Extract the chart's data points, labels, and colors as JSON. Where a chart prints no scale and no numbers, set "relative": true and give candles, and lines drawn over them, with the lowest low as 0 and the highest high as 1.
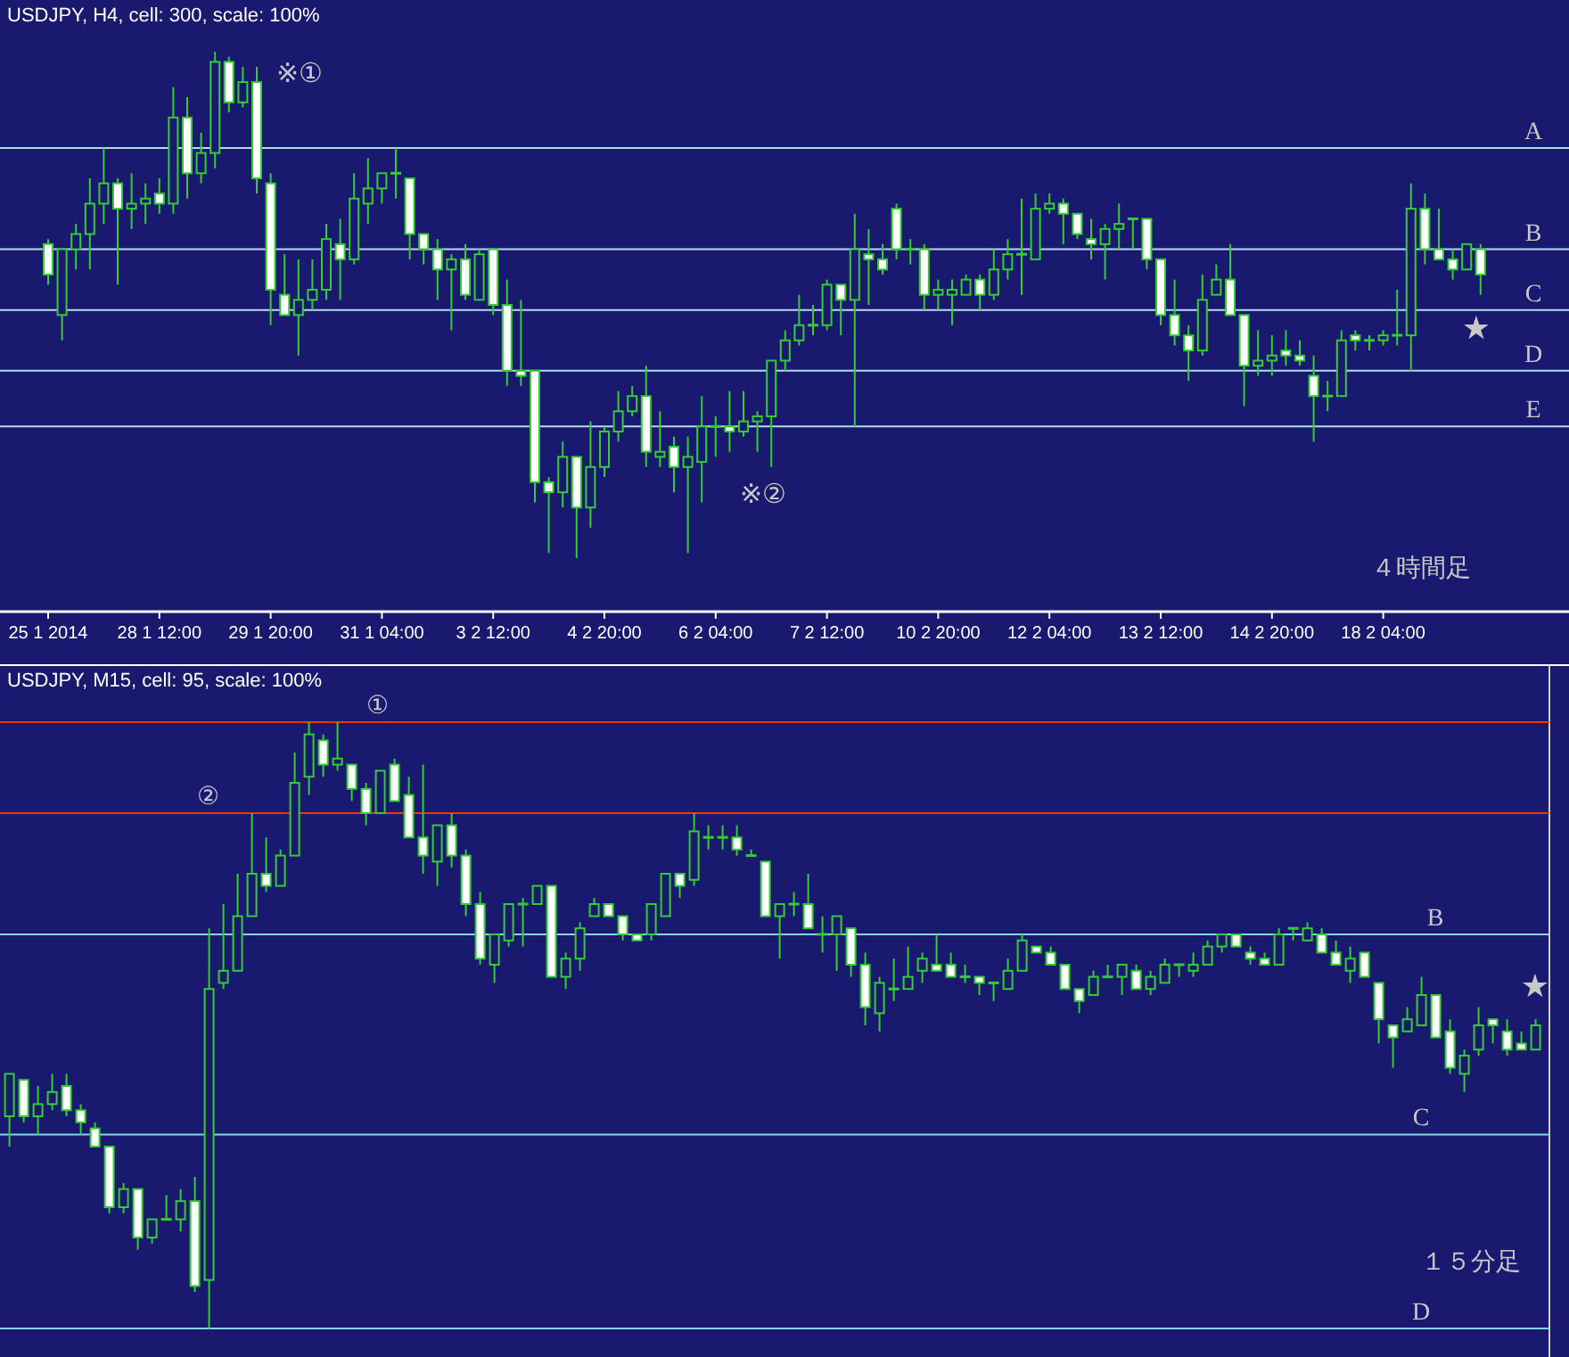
{
  "chart_data": [
    {
      "type": "candlestick",
      "title": "USDJPY, H4, cell: 300, scale: 100%",
      "relative": true,
      "categories": [
        "25 1 2014",
        null,
        null,
        null,
        null,
        null,
        null,
        null,
        "28 1 12:00",
        null,
        null,
        null,
        null,
        null,
        null,
        null,
        "29 1 20:00",
        null,
        null,
        null,
        null,
        null,
        null,
        null,
        "31 1 04:00",
        null,
        null,
        null,
        null,
        null,
        null,
        null,
        "3 2 12:00",
        null,
        null,
        null,
        null,
        null,
        null,
        null,
        "4 2 20:00",
        null,
        null,
        null,
        null,
        null,
        null,
        null,
        "6 2 04:00",
        null,
        null,
        null,
        null,
        null,
        null,
        null,
        "7 2 12:00",
        null,
        null,
        null,
        null,
        null,
        null,
        null,
        "10 2 20:00",
        null,
        null,
        null,
        null,
        null,
        null,
        null,
        "12 2 04:00",
        null,
        null,
        null,
        null,
        null,
        null,
        null,
        "13 2 12:00",
        null,
        null,
        null,
        null,
        null,
        null,
        null,
        "14 2 20:00",
        null,
        null,
        null,
        null,
        null,
        null,
        null,
        "18 2 04:00",
        null,
        null,
        null,
        null,
        null,
        null,
        null
      ],
      "ohlc": [
        [
          0.62,
          0.63,
          0.54,
          0.56
        ],
        [
          0.48,
          0.61,
          0.43,
          0.61
        ],
        [
          0.61,
          0.66,
          0.57,
          0.64
        ],
        [
          0.64,
          0.75,
          0.57,
          0.7
        ],
        [
          0.7,
          0.81,
          0.66,
          0.74
        ],
        [
          0.74,
          0.75,
          0.54,
          0.69
        ],
        [
          0.69,
          0.76,
          0.65,
          0.7
        ],
        [
          0.7,
          0.74,
          0.66,
          0.71
        ],
        [
          0.72,
          0.75,
          0.68,
          0.7
        ],
        [
          0.7,
          0.93,
          0.68,
          0.87
        ],
        [
          0.87,
          0.91,
          0.71,
          0.76
        ],
        [
          0.76,
          0.84,
          0.74,
          0.8
        ],
        [
          0.8,
          1,
          0.77,
          0.98
        ],
        [
          0.98,
          0.99,
          0.88,
          0.9
        ],
        [
          0.9,
          0.97,
          0.89,
          0.94
        ],
        [
          0.94,
          0.97,
          0.72,
          0.75
        ],
        [
          0.74,
          0.76,
          0.46,
          0.53
        ],
        [
          0.52,
          0.6,
          0.48,
          0.48
        ],
        [
          0.48,
          0.59,
          0.4,
          0.51
        ],
        [
          0.51,
          0.59,
          0.49,
          0.53
        ],
        [
          0.53,
          0.66,
          0.51,
          0.63
        ],
        [
          0.62,
          0.67,
          0.51,
          0.59
        ],
        [
          0.59,
          0.76,
          0.58,
          0.71
        ],
        [
          0.7,
          0.79,
          0.66,
          0.73
        ],
        [
          0.73,
          0.76,
          0.7,
          0.76
        ],
        [
          0.76,
          0.81,
          0.71,
          0.76
        ],
        [
          0.75,
          0.75,
          0.59,
          0.64
        ],
        [
          0.64,
          0.64,
          0.58,
          0.61
        ],
        [
          0.61,
          0.63,
          0.51,
          0.57
        ],
        [
          0.57,
          0.6,
          0.45,
          0.59
        ],
        [
          0.59,
          0.62,
          0.51,
          0.52
        ],
        [
          0.51,
          0.61,
          0.51,
          0.6
        ],
        [
          0.61,
          0.61,
          0.48,
          0.5
        ],
        [
          0.5,
          0.55,
          0.34,
          0.37
        ],
        [
          0.37,
          0.51,
          0.34,
          0.36
        ],
        [
          0.37,
          0.37,
          0.11,
          0.15
        ],
        [
          0.15,
          0.16,
          0.01,
          0.13
        ],
        [
          0.13,
          0.23,
          0.1,
          0.2
        ],
        [
          0.2,
          0.2,
          0,
          0.1
        ],
        [
          0.1,
          0.27,
          0.06,
          0.18
        ],
        [
          0.18,
          0.26,
          0.16,
          0.25
        ],
        [
          0.25,
          0.33,
          0.23,
          0.29
        ],
        [
          0.29,
          0.34,
          0.28,
          0.32
        ],
        [
          0.32,
          0.38,
          0.18,
          0.21
        ],
        [
          0.2,
          0.29,
          0.18,
          0.21
        ],
        [
          0.22,
          0.24,
          0.13,
          0.18
        ],
        [
          0.18,
          0.24,
          0.01,
          0.2
        ],
        [
          0.19,
          0.32,
          0.11,
          0.26
        ],
        [
          0.26,
          0.28,
          0.2,
          0.26
        ],
        [
          0.26,
          0.33,
          0.21,
          0.25
        ],
        [
          0.25,
          0.33,
          0.24,
          0.27
        ],
        [
          0.27,
          0.29,
          0.21,
          0.28
        ],
        [
          0.28,
          0.39,
          0.18,
          0.39
        ],
        [
          0.39,
          0.45,
          0.37,
          0.43
        ],
        [
          0.43,
          0.52,
          0.42,
          0.46
        ],
        [
          0.46,
          0.5,
          0.44,
          0.46
        ],
        [
          0.46,
          0.55,
          0.45,
          0.54
        ],
        [
          0.54,
          0.54,
          0.44,
          0.51
        ],
        [
          0.51,
          0.68,
          0.26,
          0.61
        ],
        [
          0.6,
          0.65,
          0.5,
          0.59
        ],
        [
          0.59,
          0.62,
          0.56,
          0.57
        ],
        [
          0.69,
          0.7,
          0.59,
          0.61
        ],
        [
          0.61,
          0.63,
          0.58,
          0.61
        ],
        [
          0.61,
          0.62,
          0.49,
          0.52
        ],
        [
          0.52,
          0.55,
          0.49,
          0.53
        ],
        [
          0.52,
          0.55,
          0.46,
          0.53
        ],
        [
          0.52,
          0.56,
          0.52,
          0.55
        ],
        [
          0.55,
          0.56,
          0.49,
          0.52
        ],
        [
          0.52,
          0.61,
          0.51,
          0.57
        ],
        [
          0.57,
          0.63,
          0.55,
          0.6
        ],
        [
          0.6,
          0.71,
          0.52,
          0.6
        ],
        [
          0.59,
          0.72,
          0.59,
          0.69
        ],
        [
          0.69,
          0.72,
          0.68,
          0.7
        ],
        [
          0.7,
          0.71,
          0.62,
          0.68
        ],
        [
          0.68,
          0.68,
          0.63,
          0.64
        ],
        [
          0.63,
          0.67,
          0.59,
          0.62
        ],
        [
          0.62,
          0.66,
          0.55,
          0.65
        ],
        [
          0.65,
          0.7,
          0.61,
          0.66
        ],
        [
          0.67,
          0.67,
          0.61,
          0.67
        ],
        [
          0.67,
          0.67,
          0.57,
          0.59
        ],
        [
          0.59,
          0.59,
          0.46,
          0.48
        ],
        [
          0.48,
          0.55,
          0.42,
          0.44
        ],
        [
          0.44,
          0.46,
          0.35,
          0.41
        ],
        [
          0.41,
          0.56,
          0.4,
          0.51
        ],
        [
          0.52,
          0.58,
          0.52,
          0.55
        ],
        [
          0.55,
          0.62,
          0.48,
          0.48
        ],
        [
          0.48,
          0.48,
          0.3,
          0.38
        ],
        [
          0.38,
          0.45,
          0.36,
          0.39
        ],
        [
          0.39,
          0.44,
          0.36,
          0.4
        ],
        [
          0.41,
          0.45,
          0.38,
          0.4
        ],
        [
          0.4,
          0.43,
          0.38,
          0.39
        ],
        [
          0.36,
          0.4,
          0.23,
          0.32
        ],
        [
          0.32,
          0.35,
          0.29,
          0.32
        ],
        [
          0.32,
          0.45,
          0.32,
          0.43
        ],
        [
          0.44,
          0.45,
          0.41,
          0.43
        ],
        [
          0.43,
          0.44,
          0.41,
          0.43
        ],
        [
          0.43,
          0.45,
          0.42,
          0.44
        ],
        [
          0.44,
          0.53,
          0.42,
          0.44
        ],
        [
          0.44,
          0.74,
          0.37,
          0.69
        ],
        [
          0.69,
          0.72,
          0.58,
          0.61
        ],
        [
          0.61,
          0.69,
          0.59,
          0.59
        ],
        [
          0.59,
          0.61,
          0.55,
          0.57
        ],
        [
          0.57,
          0.62,
          0.57,
          0.62
        ],
        [
          0.61,
          0.62,
          0.52,
          0.56
        ]
      ],
      "ref_lines": [
        {
          "axis": "y",
          "value": 0.81,
          "label": "A",
          "color": "#b0dcec"
        },
        {
          "axis": "y",
          "value": 0.61,
          "label": "B",
          "color": "#b0dcec"
        },
        {
          "axis": "y",
          "value": 0.49,
          "label": "C",
          "color": "#b0dcec"
        },
        {
          "axis": "y",
          "value": 0.37,
          "label": "D",
          "color": "#b0dcec"
        },
        {
          "axis": "y",
          "value": 0.26,
          "label": "E",
          "color": "#b0dcec"
        }
      ],
      "annotations": [
        "※①",
        "※②",
        "★",
        "４時間足"
      ]
    },
    {
      "type": "candlestick",
      "title": "USDJPY, M15, cell: 95, scale: 100%",
      "relative": true,
      "categories": [
        null,
        null,
        null,
        null,
        null,
        null,
        null,
        null,
        null,
        null,
        null,
        null,
        null,
        null,
        null,
        null,
        null,
        null,
        null,
        null,
        null,
        null,
        null,
        null,
        null,
        null,
        null,
        null,
        null,
        null,
        null,
        null,
        null,
        null,
        null,
        null,
        null,
        null,
        null,
        null,
        null,
        null,
        null,
        null,
        null,
        null,
        null,
        null,
        null,
        null,
        null,
        null,
        null,
        null,
        null,
        null,
        null,
        null,
        null,
        null,
        null,
        null,
        null,
        null,
        null,
        null,
        null,
        null,
        null,
        null,
        null,
        null,
        null,
        null,
        null,
        null,
        null,
        null,
        null,
        null,
        null,
        null,
        null,
        null,
        null,
        null,
        null,
        null,
        null,
        null,
        null,
        null,
        null,
        null,
        null,
        null,
        null,
        null,
        null,
        null,
        null,
        null,
        null,
        null,
        null,
        null,
        null,
        null
      ],
      "ohlc": [
        [
          0.35,
          0.42,
          0.3,
          0.42
        ],
        [
          0.41,
          0.41,
          0.34,
          0.35
        ],
        [
          0.35,
          0.4,
          0.32,
          0.37
        ],
        [
          0.37,
          0.42,
          0.36,
          0.39
        ],
        [
          0.4,
          0.42,
          0.35,
          0.36
        ],
        [
          0.36,
          0.37,
          0.32,
          0.34
        ],
        [
          0.33,
          0.34,
          0.3,
          0.3
        ],
        [
          0.3,
          0.3,
          0.19,
          0.2
        ],
        [
          0.2,
          0.24,
          0.19,
          0.23
        ],
        [
          0.23,
          0.23,
          0.13,
          0.15
        ],
        [
          0.15,
          0.18,
          0.14,
          0.18
        ],
        [
          0.18,
          0.22,
          0.18,
          0.18
        ],
        [
          0.18,
          0.23,
          0.16,
          0.21
        ],
        [
          0.21,
          0.25,
          0.06,
          0.07
        ],
        [
          0.08,
          0.66,
          0,
          0.56
        ],
        [
          0.57,
          0.7,
          0.56,
          0.59
        ],
        [
          0.59,
          0.75,
          0.59,
          0.68
        ],
        [
          0.68,
          0.85,
          0.68,
          0.75
        ],
        [
          0.75,
          0.81,
          0.72,
          0.73
        ],
        [
          0.73,
          0.79,
          0.73,
          0.78
        ],
        [
          0.78,
          0.95,
          0.78,
          0.9
        ],
        [
          0.91,
          1,
          0.88,
          0.98
        ],
        [
          0.97,
          0.98,
          0.91,
          0.93
        ],
        [
          0.93,
          1,
          0.92,
          0.94
        ],
        [
          0.93,
          0.93,
          0.87,
          0.89
        ],
        [
          0.89,
          0.9,
          0.83,
          0.85
        ],
        [
          0.85,
          0.92,
          0.85,
          0.92
        ],
        [
          0.93,
          0.94,
          0.87,
          0.87
        ],
        [
          0.88,
          0.91,
          0.81,
          0.81
        ],
        [
          0.81,
          0.93,
          0.75,
          0.78
        ],
        [
          0.77,
          0.83,
          0.73,
          0.83
        ],
        [
          0.83,
          0.85,
          0.76,
          0.78
        ],
        [
          0.78,
          0.79,
          0.68,
          0.7
        ],
        [
          0.7,
          0.72,
          0.6,
          0.61
        ],
        [
          0.6,
          0.65,
          0.57,
          0.65
        ],
        [
          0.64,
          0.7,
          0.63,
          0.7
        ],
        [
          0.7,
          0.71,
          0.63,
          0.7
        ],
        [
          0.7,
          0.73,
          0.7,
          0.73
        ],
        [
          0.73,
          0.73,
          0.58,
          0.58
        ],
        [
          0.58,
          0.62,
          0.56,
          0.61
        ],
        [
          0.61,
          0.67,
          0.59,
          0.66
        ],
        [
          0.68,
          0.71,
          0.68,
          0.7
        ],
        [
          0.7,
          0.7,
          0.68,
          0.68
        ],
        [
          0.68,
          0.68,
          0.64,
          0.65
        ],
        [
          0.65,
          0.65,
          0.64,
          0.64
        ],
        [
          0.65,
          0.7,
          0.64,
          0.7
        ],
        [
          0.68,
          0.75,
          0.68,
          0.75
        ],
        [
          0.75,
          0.75,
          0.71,
          0.73
        ],
        [
          0.74,
          0.85,
          0.73,
          0.82
        ],
        [
          0.81,
          0.83,
          0.79,
          0.81
        ],
        [
          0.81,
          0.83,
          0.79,
          0.81
        ],
        [
          0.81,
          0.83,
          0.78,
          0.79
        ],
        [
          0.78,
          0.79,
          0.78,
          0.78
        ],
        [
          0.77,
          0.77,
          0.68,
          0.68
        ],
        [
          0.68,
          0.7,
          0.61,
          0.7
        ],
        [
          0.7,
          0.72,
          0.68,
          0.7
        ],
        [
          0.7,
          0.75,
          0.66,
          0.66
        ],
        [
          0.65,
          0.68,
          0.62,
          0.65
        ],
        [
          0.65,
          0.68,
          0.59,
          0.68
        ],
        [
          0.66,
          0.66,
          0.58,
          0.6
        ],
        [
          0.6,
          0.62,
          0.5,
          0.53
        ],
        [
          0.52,
          0.58,
          0.49,
          0.57
        ],
        [
          0.56,
          0.61,
          0.54,
          0.56
        ],
        [
          0.56,
          0.63,
          0.56,
          0.58
        ],
        [
          0.59,
          0.62,
          0.57,
          0.61
        ],
        [
          0.6,
          0.65,
          0.59,
          0.59
        ],
        [
          0.6,
          0.62,
          0.58,
          0.58
        ],
        [
          0.58,
          0.6,
          0.57,
          0.58
        ],
        [
          0.58,
          0.58,
          0.55,
          0.57
        ],
        [
          0.57,
          0.57,
          0.54,
          0.57
        ],
        [
          0.56,
          0.61,
          0.56,
          0.59
        ],
        [
          0.59,
          0.65,
          0.59,
          0.64
        ],
        [
          0.63,
          0.63,
          0.62,
          0.62
        ],
        [
          0.62,
          0.63,
          0.6,
          0.6
        ],
        [
          0.6,
          0.6,
          0.56,
          0.56
        ],
        [
          0.56,
          0.56,
          0.52,
          0.54
        ],
        [
          0.55,
          0.59,
          0.55,
          0.58
        ],
        [
          0.58,
          0.6,
          0.58,
          0.58
        ],
        [
          0.58,
          0.6,
          0.55,
          0.6
        ],
        [
          0.59,
          0.6,
          0.56,
          0.56
        ],
        [
          0.56,
          0.59,
          0.55,
          0.58
        ],
        [
          0.57,
          0.61,
          0.57,
          0.6
        ],
        [
          0.6,
          0.6,
          0.58,
          0.6
        ],
        [
          0.59,
          0.62,
          0.58,
          0.6
        ],
        [
          0.6,
          0.64,
          0.6,
          0.63
        ],
        [
          0.63,
          0.65,
          0.62,
          0.65
        ],
        [
          0.65,
          0.65,
          0.63,
          0.63
        ],
        [
          0.62,
          0.63,
          0.6,
          0.61
        ],
        [
          0.61,
          0.62,
          0.6,
          0.6
        ],
        [
          0.6,
          0.66,
          0.6,
          0.65
        ],
        [
          0.66,
          0.66,
          0.64,
          0.66
        ],
        [
          0.64,
          0.67,
          0.64,
          0.66
        ],
        [
          0.65,
          0.66,
          0.62,
          0.62
        ],
        [
          0.62,
          0.64,
          0.6,
          0.6
        ],
        [
          0.59,
          0.63,
          0.57,
          0.61
        ],
        [
          0.62,
          0.62,
          0.58,
          0.58
        ],
        [
          0.57,
          0.57,
          0.47,
          0.51
        ],
        [
          0.5,
          0.5,
          0.43,
          0.48
        ],
        [
          0.49,
          0.53,
          0.49,
          0.51
        ],
        [
          0.5,
          0.58,
          0.5,
          0.55
        ],
        [
          0.55,
          0.55,
          0.48,
          0.48
        ],
        [
          0.49,
          0.51,
          0.42,
          0.43
        ],
        [
          0.42,
          0.46,
          0.39,
          0.45
        ],
        [
          0.46,
          0.53,
          0.45,
          0.5
        ],
        [
          0.51,
          0.51,
          0.47,
          0.5
        ],
        [
          0.49,
          0.51,
          0.45,
          0.46
        ],
        [
          0.47,
          0.49,
          0.46,
          0.46
        ],
        [
          0.46,
          0.51,
          0.46,
          0.5
        ]
      ],
      "ref_lines": [
        {
          "axis": "y",
          "value": 1,
          "label": "①",
          "color": "#ff3300"
        },
        {
          "axis": "y",
          "value": 0.85,
          "label": "②",
          "color": "#ff3300"
        },
        {
          "axis": "y",
          "value": 0.65,
          "label": "B",
          "color": "#87d3ea"
        },
        {
          "axis": "y",
          "value": 0.32,
          "label": "C",
          "color": "#87d3ea"
        },
        {
          "axis": "y",
          "value": 0,
          "label": "D",
          "color": "#87d3ea"
        }
      ],
      "annotations": [
        "★",
        "１５分足"
      ]
    }
  ]
}
